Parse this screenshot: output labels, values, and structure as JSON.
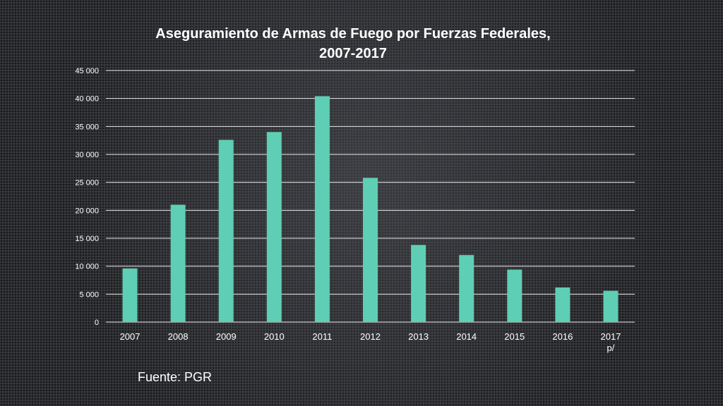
{
  "chart_data": {
    "type": "bar",
    "title_lines": [
      "Aseguramiento de Armas de Fuego por Fuerzas Federales,",
      "2007-2017"
    ],
    "categories": [
      "2007",
      "2008",
      "2009",
      "2010",
      "2011",
      "2012",
      "2013",
      "2014",
      "2015",
      "2016",
      "2017 p/"
    ],
    "values": [
      9600,
      21000,
      32600,
      34000,
      40400,
      25800,
      13800,
      12000,
      9400,
      6200,
      5600
    ],
    "ylim": [
      0,
      45000
    ],
    "yticks": [
      0,
      5000,
      10000,
      15000,
      20000,
      25000,
      30000,
      35000,
      40000,
      45000
    ],
    "ytick_labels": [
      "0",
      "5 000",
      "10 000",
      "15 000",
      "20 000",
      "25 000",
      "30 000",
      "35 000",
      "40 000",
      "45 000"
    ],
    "grid": true,
    "legend": "none",
    "bar_color": "#5ecfb4",
    "grid_color": "#e8e8e8"
  },
  "source_label": "Fuente: PGR"
}
